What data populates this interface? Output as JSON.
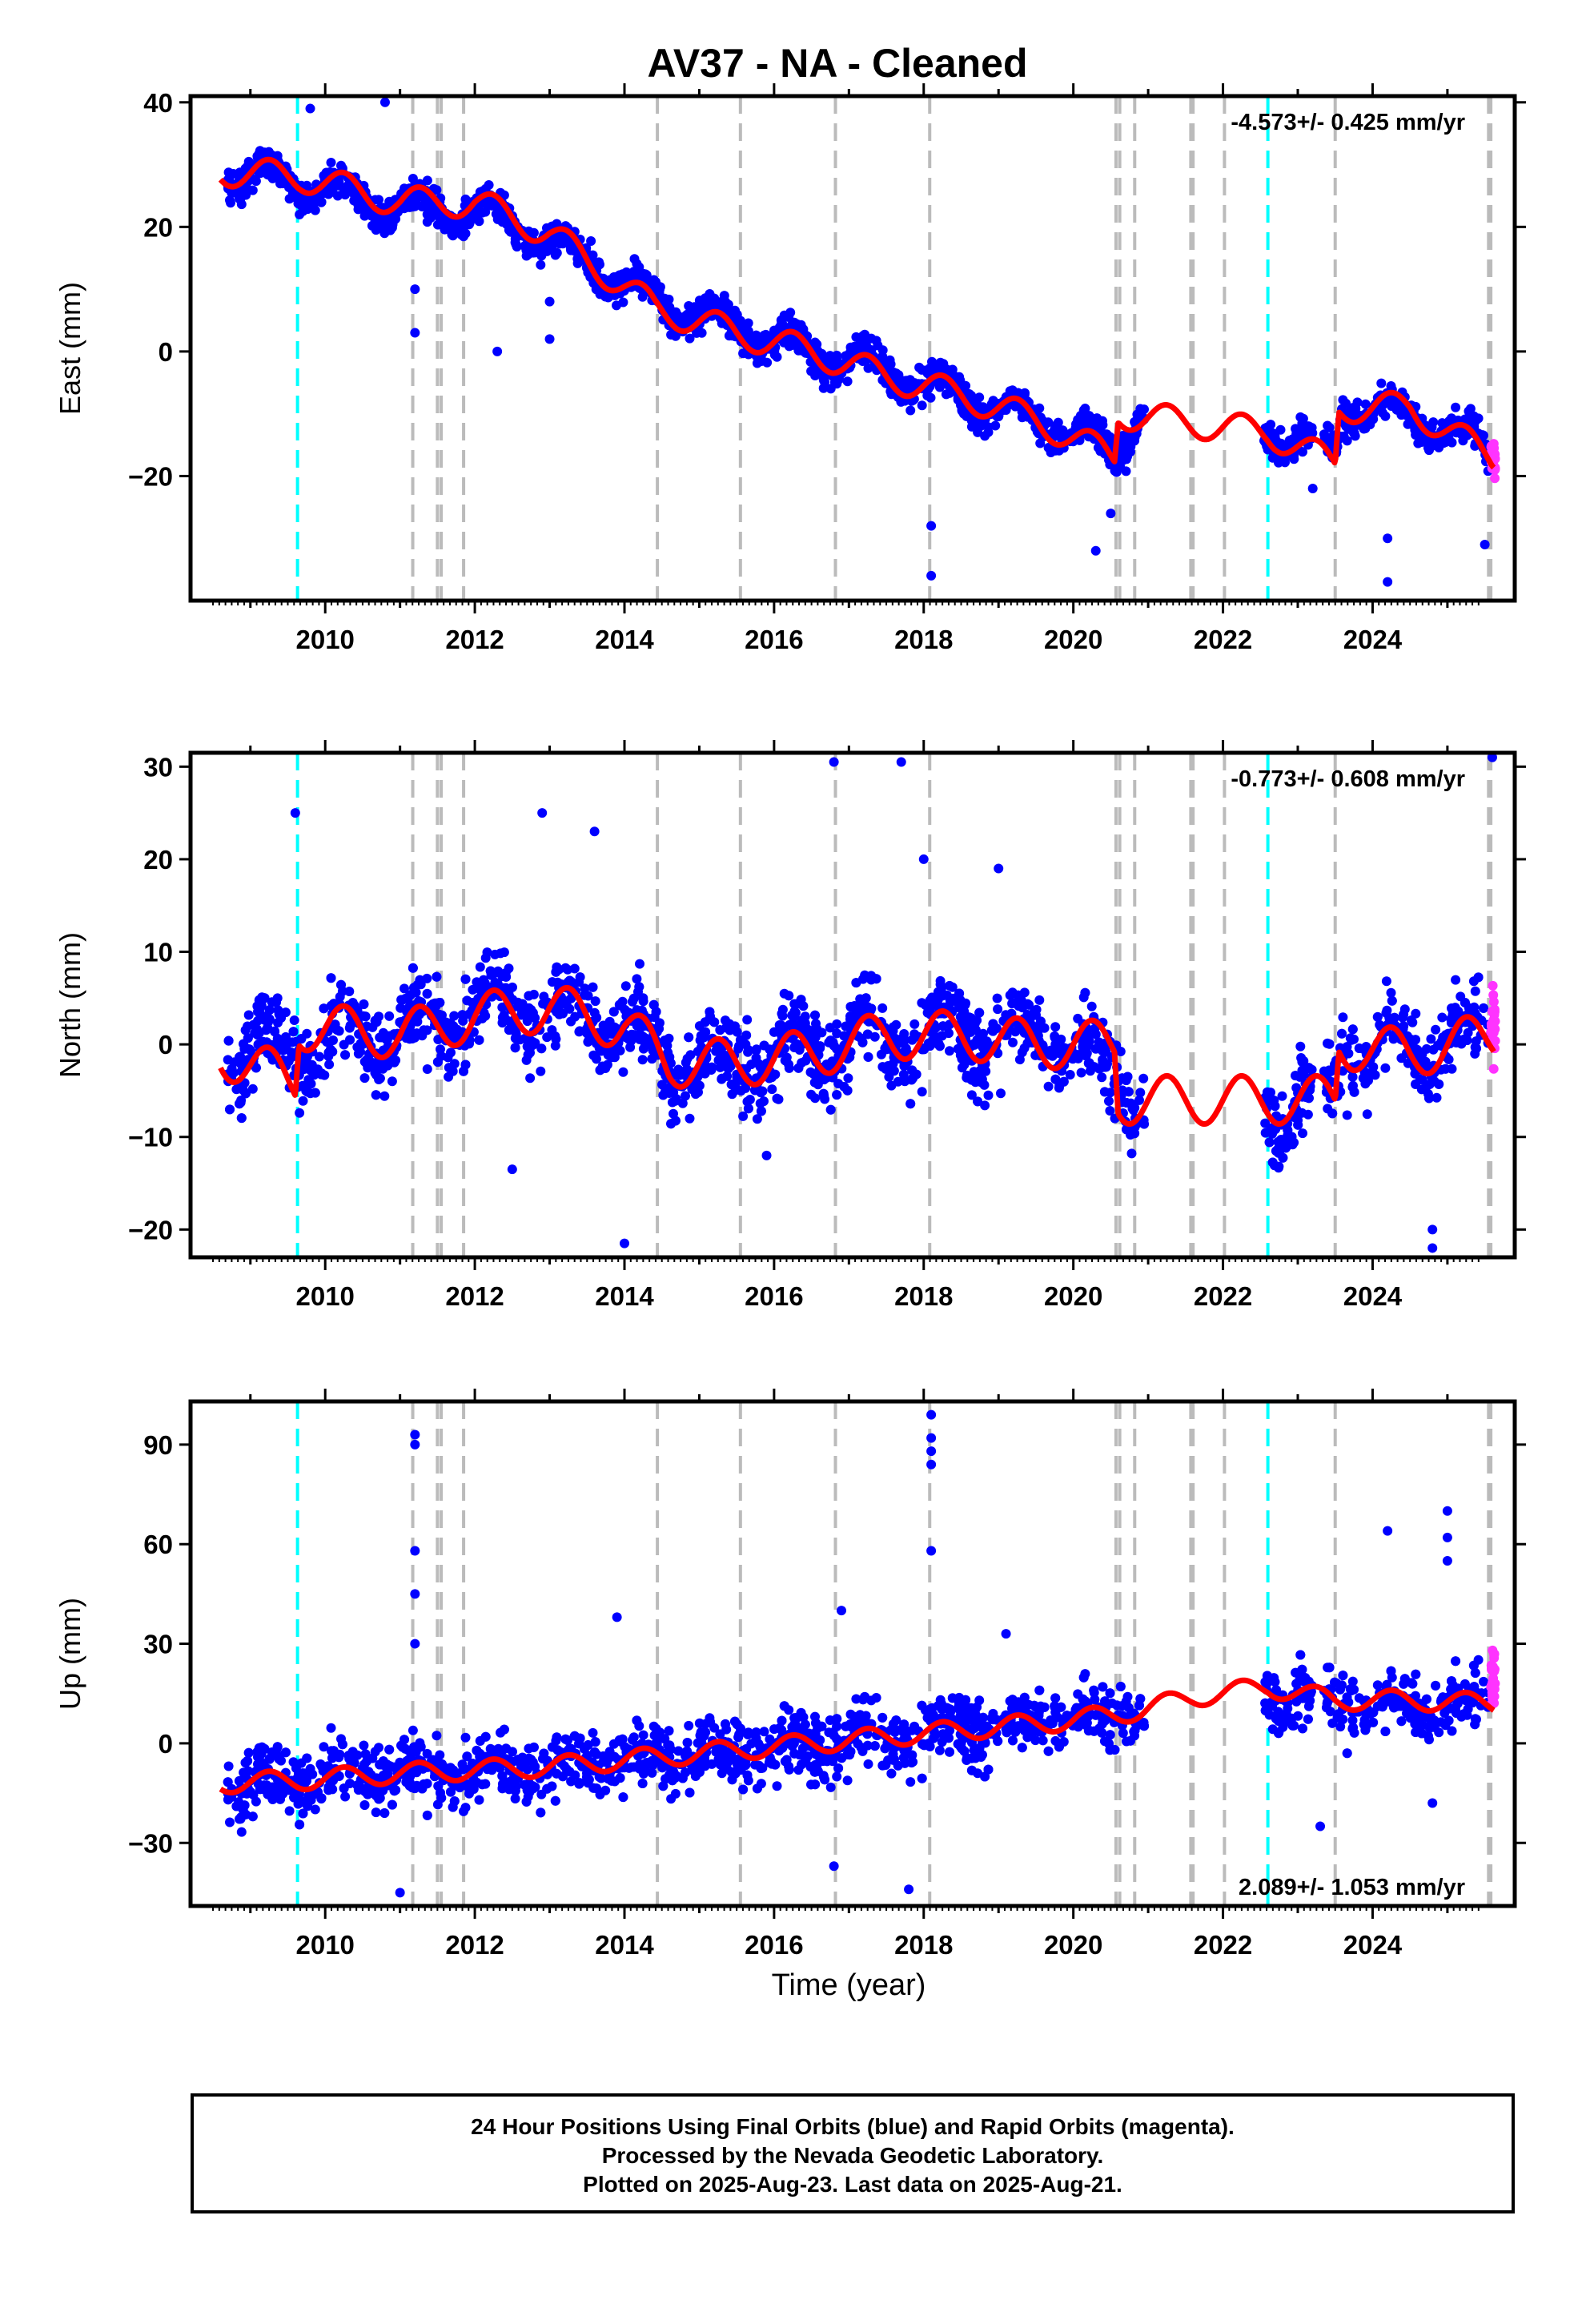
{
  "chart_title": "AV37  - NA - Cleaned",
  "x_axis_label": "Time (year)",
  "footer": {
    "line1": "24 Hour Positions Using Final Orbits (blue) and Rapid Orbits (magenta).",
    "line2": "Processed by the Nevada Geodetic Laboratory.",
    "line3": "Plotted on 2025-Aug-23. Last data on 2025-Aug-21."
  },
  "colors": {
    "final_orbits": "#0000ff",
    "rapid_orbits": "#ff33ff",
    "model": "#ff0000",
    "event_gray": "#bbbbbb",
    "event_cyan": "#00ffff"
  },
  "chart_data": [
    {
      "type": "scatter",
      "panel": "east",
      "ylabel": "East (mm)",
      "rate_label": "-4.573+/- 0.425 mm/yr",
      "rate_position": "top-right",
      "xlim": [
        2008.2,
        2025.9
      ],
      "ylim": [
        -40,
        41
      ],
      "yticks": [
        -20,
        0,
        20,
        40
      ],
      "xticks": [
        2010,
        2012,
        2014,
        2016,
        2018,
        2020,
        2022,
        2024
      ],
      "series": [
        {
          "name": "Final Orbits",
          "color": "#0000ff",
          "trend_points": [
            [
              2008.6,
              29
            ],
            [
              2009.7,
              27
            ],
            [
              2011.0,
              23
            ],
            [
              2012.0,
              23
            ],
            [
              2013.0,
              18
            ],
            [
              2014.4,
              8
            ],
            [
              2015.5,
              4
            ],
            [
              2016.5,
              0
            ],
            [
              2017.5,
              -3
            ],
            [
              2018.5,
              -7
            ],
            [
              2019.5,
              -11
            ],
            [
              2020.6,
              -16
            ],
            [
              2020.9,
              -9
            ],
            [
              2022.7,
              -13
            ],
            [
              2023.5,
              -16
            ],
            [
              2023.6,
              -9
            ],
            [
              2024.5,
              -10
            ],
            [
              2025.6,
              -16
            ]
          ]
        },
        {
          "name": "Rapid Orbits",
          "color": "#ff33ff",
          "trend_points": [
            [
              2025.6,
              -17
            ]
          ]
        }
      ],
      "model_line": [
        [
          2008.6,
          29
        ],
        [
          2009.7,
          28
        ],
        [
          2011.0,
          24
        ],
        [
          2012.0,
          24
        ],
        [
          2013.0,
          19
        ],
        [
          2014.4,
          7
        ],
        [
          2015.5,
          3
        ],
        [
          2016.5,
          0
        ],
        [
          2017.5,
          -4
        ],
        [
          2018.5,
          -7
        ],
        [
          2019.5,
          -11
        ],
        [
          2020.55,
          -17
        ],
        [
          2020.6,
          -10
        ],
        [
          2022.6,
          -13
        ],
        [
          2023.5,
          -18
        ],
        [
          2023.55,
          -9
        ],
        [
          2024.5,
          -9
        ],
        [
          2025.6,
          -17
        ]
      ],
      "model_amplitude": 2.4,
      "outliers": [
        [
          2011.2,
          3
        ],
        [
          2011.2,
          10
        ],
        [
          2012.3,
          0
        ],
        [
          2013.0,
          2
        ],
        [
          2013.0,
          8
        ],
        [
          2018.1,
          -28
        ],
        [
          2018.1,
          -36
        ],
        [
          2020.3,
          -32
        ],
        [
          2020.5,
          -26
        ],
        [
          2023.2,
          -22
        ],
        [
          2024.2,
          -30
        ],
        [
          2024.2,
          -37
        ],
        [
          2025.5,
          -31
        ],
        [
          2009.8,
          39
        ],
        [
          2010.8,
          40
        ]
      ]
    },
    {
      "type": "scatter",
      "panel": "north",
      "ylabel": "North (mm)",
      "rate_label": "-0.773+/- 0.608 mm/yr",
      "rate_position": "top-right",
      "xlim": [
        2008.2,
        2025.9
      ],
      "ylim": [
        -23,
        31.5
      ],
      "yticks": [
        -20,
        -10,
        0,
        10,
        20,
        30
      ],
      "xticks": [
        2010,
        2012,
        2014,
        2016,
        2018,
        2020,
        2022,
        2024
      ],
      "series": [
        {
          "name": "Final Orbits",
          "color": "#0000ff",
          "trend_points": [
            [
              2008.6,
              -1
            ],
            [
              2009.7,
              0
            ],
            [
              2011.0,
              1
            ],
            [
              2012.0,
              4
            ],
            [
              2013.0,
              4
            ],
            [
              2014.0,
              2
            ],
            [
              2014.6,
              -2
            ],
            [
              2015.5,
              -2
            ],
            [
              2016.5,
              0
            ],
            [
              2017.5,
              1
            ],
            [
              2018.5,
              1
            ],
            [
              2019.5,
              1
            ],
            [
              2020.6,
              -3
            ],
            [
              2020.9,
              -6
            ],
            [
              2022.7,
              -7
            ],
            [
              2023.5,
              -5
            ],
            [
              2023.6,
              0
            ],
            [
              2024.5,
              0
            ],
            [
              2025.6,
              1
            ]
          ]
        },
        {
          "name": "Rapid Orbits",
          "color": "#ff33ff",
          "trend_points": [
            [
              2025.6,
              2
            ]
          ]
        }
      ],
      "model_line": [
        [
          2008.6,
          -1
        ],
        [
          2009.6,
          -4
        ],
        [
          2009.65,
          2
        ],
        [
          2011.0,
          1
        ],
        [
          2012.0,
          3
        ],
        [
          2013.0,
          4
        ],
        [
          2014.0,
          2
        ],
        [
          2014.6,
          -2
        ],
        [
          2015.5,
          -2
        ],
        [
          2016.5,
          -1
        ],
        [
          2017.5,
          1
        ],
        [
          2018.5,
          1
        ],
        [
          2019.5,
          0
        ],
        [
          2020.55,
          0
        ],
        [
          2020.6,
          -6
        ],
        [
          2022.6,
          -6
        ],
        [
          2023.5,
          -6
        ],
        [
          2023.55,
          0
        ],
        [
          2024.5,
          -1
        ],
        [
          2025.6,
          1
        ]
      ],
      "model_amplitude": 2.6,
      "outliers": [
        [
          2009.6,
          25
        ],
        [
          2016.8,
          30.5
        ],
        [
          2017.7,
          30.5
        ],
        [
          2014.0,
          -21.5
        ],
        [
          2012.5,
          -13.5
        ],
        [
          2018.0,
          20
        ],
        [
          2024.8,
          -20
        ],
        [
          2024.8,
          -22
        ],
        [
          2025.6,
          31
        ],
        [
          2013.6,
          23
        ],
        [
          2012.9,
          25
        ],
        [
          2019.0,
          19
        ],
        [
          2015.9,
          -12
        ]
      ]
    },
    {
      "type": "scatter",
      "panel": "up",
      "ylabel": "Up (mm)",
      "rate_label": "2.089+/- 1.053 mm/yr",
      "rate_position": "bottom-right",
      "xlim": [
        2008.2,
        2025.9
      ],
      "ylim": [
        -49,
        103
      ],
      "yticks": [
        -30,
        0,
        30,
        60,
        90
      ],
      "xticks": [
        2010,
        2012,
        2014,
        2016,
        2018,
        2020,
        2022,
        2024
      ],
      "series": [
        {
          "name": "Final Orbits",
          "color": "#0000ff",
          "trend_points": [
            [
              2008.6,
              -13
            ],
            [
              2009.7,
              -10
            ],
            [
              2011.0,
              -9
            ],
            [
              2012.0,
              -8
            ],
            [
              2013.0,
              -7
            ],
            [
              2014.0,
              -5
            ],
            [
              2015.0,
              -3
            ],
            [
              2016.0,
              -1
            ],
            [
              2017.0,
              1
            ],
            [
              2018.0,
              3
            ],
            [
              2019.0,
              5
            ],
            [
              2020.0,
              7
            ],
            [
              2020.9,
              10
            ],
            [
              2022.7,
              15
            ],
            [
              2023.5,
              12
            ],
            [
              2024.5,
              12
            ],
            [
              2025.6,
              12
            ]
          ]
        },
        {
          "name": "Rapid Orbits",
          "color": "#ff33ff",
          "trend_points": [
            [
              2025.6,
              20
            ]
          ]
        }
      ],
      "model_line": [
        [
          2008.6,
          -12
        ],
        [
          2009.7,
          -11
        ],
        [
          2011.0,
          -9
        ],
        [
          2012.0,
          -8
        ],
        [
          2013.0,
          -7
        ],
        [
          2014.0,
          -5
        ],
        [
          2015.0,
          -3
        ],
        [
          2016.0,
          -1
        ],
        [
          2017.0,
          1
        ],
        [
          2018.0,
          3
        ],
        [
          2019.0,
          5
        ],
        [
          2020.0,
          7
        ],
        [
          2020.9,
          10
        ],
        [
          2021.6,
          14
        ],
        [
          2022.6,
          17
        ],
        [
          2023.5,
          13
        ],
        [
          2024.5,
          13
        ],
        [
          2025.6,
          12
        ]
      ],
      "model_amplitude": 3.0,
      "outliers": [
        [
          2011.2,
          93
        ],
        [
          2011.2,
          90
        ],
        [
          2011.2,
          58
        ],
        [
          2011.2,
          45
        ],
        [
          2011.2,
          30
        ],
        [
          2018.1,
          99
        ],
        [
          2018.1,
          92
        ],
        [
          2018.1,
          88
        ],
        [
          2018.1,
          84
        ],
        [
          2018.1,
          58
        ],
        [
          2013.9,
          38
        ],
        [
          2016.8,
          -37
        ],
        [
          2017.8,
          -44
        ],
        [
          2011.0,
          -45
        ],
        [
          2023.3,
          -25
        ],
        [
          2024.8,
          -18
        ],
        [
          2024.2,
          64
        ],
        [
          2025.0,
          70
        ],
        [
          2025.0,
          62
        ],
        [
          2025.0,
          55
        ],
        [
          2019.1,
          33
        ],
        [
          2016.9,
          40
        ]
      ]
    }
  ],
  "event_lines": {
    "gray": [
      2011.17,
      2011.5,
      2011.55,
      2011.85,
      2014.44,
      2015.55,
      2016.82,
      2018.08,
      2020.57,
      2020.62,
      2020.82,
      2021.57,
      2021.6,
      2022.02,
      2023.5,
      2025.55,
      2025.58
    ],
    "cyan": [
      2009.63,
      2022.6
    ]
  }
}
